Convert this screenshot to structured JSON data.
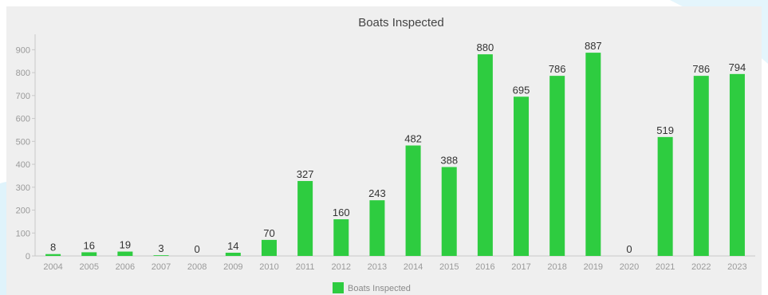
{
  "chart_data": {
    "type": "bar",
    "title": "Boats Inspected",
    "categories": [
      "2004",
      "2005",
      "2006",
      "2007",
      "2008",
      "2009",
      "2010",
      "2011",
      "2012",
      "2013",
      "2014",
      "2015",
      "2016",
      "2017",
      "2018",
      "2019",
      "2020",
      "2021",
      "2022",
      "2023"
    ],
    "series": [
      {
        "name": "Boats Inspected",
        "values": [
          8,
          16,
          19,
          3,
          0,
          14,
          70,
          327,
          160,
          243,
          482,
          388,
          880,
          695,
          786,
          887,
          0,
          519,
          786,
          794
        ]
      }
    ],
    "ylim": [
      0,
      950
    ],
    "yticks": [
      0,
      100,
      200,
      300,
      400,
      500,
      600,
      700,
      800,
      900
    ],
    "grid": false,
    "legend_position": "bottom-center",
    "bar_color": "#2ecc40",
    "data_labels": true
  },
  "colors": {
    "panel_background": "#efefef",
    "bar": "#2ecc40",
    "accent_swoosh": "#cdeefb"
  }
}
